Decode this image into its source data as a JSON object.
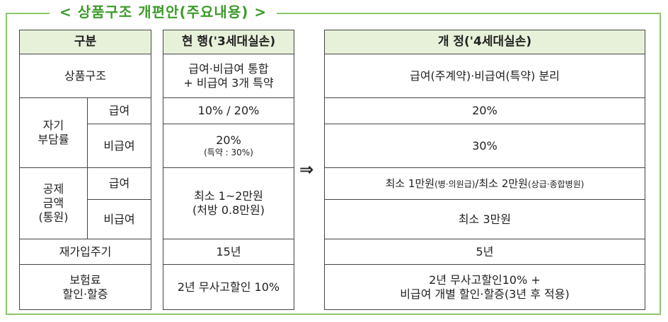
{
  "title": "< 상품구조 개편안(주요내용) >",
  "arrow": "⇒",
  "left": {
    "header": "구분",
    "product": "상품구조",
    "burden": "자기\n부담률",
    "burden_covered": "급여",
    "burden_noncovered": "비급여",
    "deductible": "공제\n금액\n(통원)",
    "ded_covered": "급여",
    "ded_noncovered": "비급여",
    "renewal": "재가입주기",
    "premium": "보험료\n할인·할증"
  },
  "mid": {
    "header": "현 행('3세대실손)",
    "product": "급여·비급여 통합\n+ 비급여 3개 특약",
    "burden_covered": "10% / 20%",
    "burden_noncovered_main": "20%",
    "burden_noncovered_sub": "(특약 : 30%)",
    "deductible": "최소 1~2만원\n(처방 0.8만원)",
    "renewal": "15년",
    "premium": "2년 무사고할인 10%"
  },
  "right": {
    "header": "개 정('4세대실손)",
    "product": "급여(주계약)·비급여(특약) 분리",
    "burden_covered": "20%",
    "burden_noncovered": "30%",
    "ded_covered_a": "최소 1만원",
    "ded_covered_b": "(병·의원급)",
    "ded_covered_c": "/최소 2만원",
    "ded_covered_d": "(상급·종합병원)",
    "ded_noncovered": "최소 3만원",
    "renewal": "5년",
    "premium": "2년 무사고할인10% +\n비급여 개별 할인·할증(3년 후 적용)"
  }
}
